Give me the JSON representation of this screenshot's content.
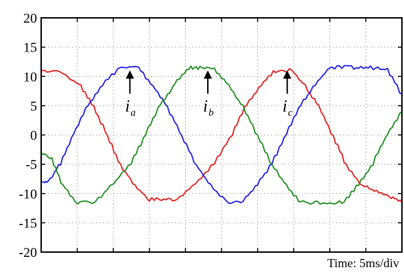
{
  "chart_data": {
    "type": "line",
    "title": "",
    "xlabel": "",
    "ylabel": "",
    "ylim": [
      -20,
      20
    ],
    "xlim": [
      0,
      50
    ],
    "x_unit": "ms",
    "grid": true,
    "y_ticks": [
      "20",
      "15",
      "10",
      "5",
      "0",
      "-5",
      "-10",
      "-15",
      "-20"
    ],
    "time_label": "Time: 5ms/div",
    "series": [
      {
        "color": "#e31a1a",
        "x": [
          0,
          2.5,
          5.5,
          7.3,
          9.2,
          11,
          13,
          15,
          17,
          18.8,
          21.4,
          24,
          26.5,
          28.5,
          30.5,
          32.5,
          34.8,
          36.6,
          38.5,
          40.5,
          42.3,
          44.5,
          46.5,
          48.5,
          50
        ],
        "y": [
          11,
          11,
          8.5,
          5,
          0,
          -5,
          -8.5,
          -11,
          -11,
          -11,
          -8.5,
          -5,
          0,
          5,
          8.5,
          11,
          11,
          8.5,
          5,
          0,
          -5,
          -8.5,
          -9.5,
          -10.5,
          -11.5
        ]
      },
      {
        "color": "#1a1ae3",
        "x": [
          0,
          1,
          2.7,
          4.5,
          6.5,
          8.5,
          11,
          13.5,
          15.5,
          17.5,
          19.5,
          21.5,
          23.5,
          26,
          28,
          30,
          32,
          34,
          36,
          38,
          40,
          42,
          44,
          46,
          48,
          50
        ],
        "y": [
          -8,
          -8,
          -5,
          0,
          5,
          8.5,
          11.5,
          11.5,
          8.5,
          5,
          0,
          -5,
          -8.5,
          -11.5,
          -11.5,
          -8.5,
          -5,
          0,
          5,
          8.5,
          11.5,
          11.5,
          11.5,
          11.5,
          11.5,
          7
        ]
      },
      {
        "color": "#1a8a1a",
        "x": [
          0,
          1.5,
          3,
          5,
          7.5,
          10,
          12.5,
          14.5,
          16.5,
          18.5,
          20.5,
          22,
          24,
          26,
          28,
          30,
          32,
          34,
          36,
          38,
          40,
          42,
          44,
          46,
          48,
          50
        ],
        "y": [
          -3,
          -4,
          -8.5,
          -11.5,
          -11.5,
          -8.5,
          -5,
          0,
          5,
          8.5,
          11.5,
          11.5,
          11.5,
          8.5,
          5,
          0,
          -5,
          -8.5,
          -11.5,
          -11.5,
          -11.5,
          -11.5,
          -8.5,
          -5,
          0,
          4
        ]
      }
    ],
    "annotations": [
      {
        "main": "i",
        "sub": "a",
        "x": 12.3,
        "y": 11.5
      },
      {
        "main": "i",
        "sub": "b",
        "x": 23.1,
        "y": 11.5
      },
      {
        "main": "i",
        "sub": "c",
        "x": 34.1,
        "y": 11.5
      }
    ]
  }
}
